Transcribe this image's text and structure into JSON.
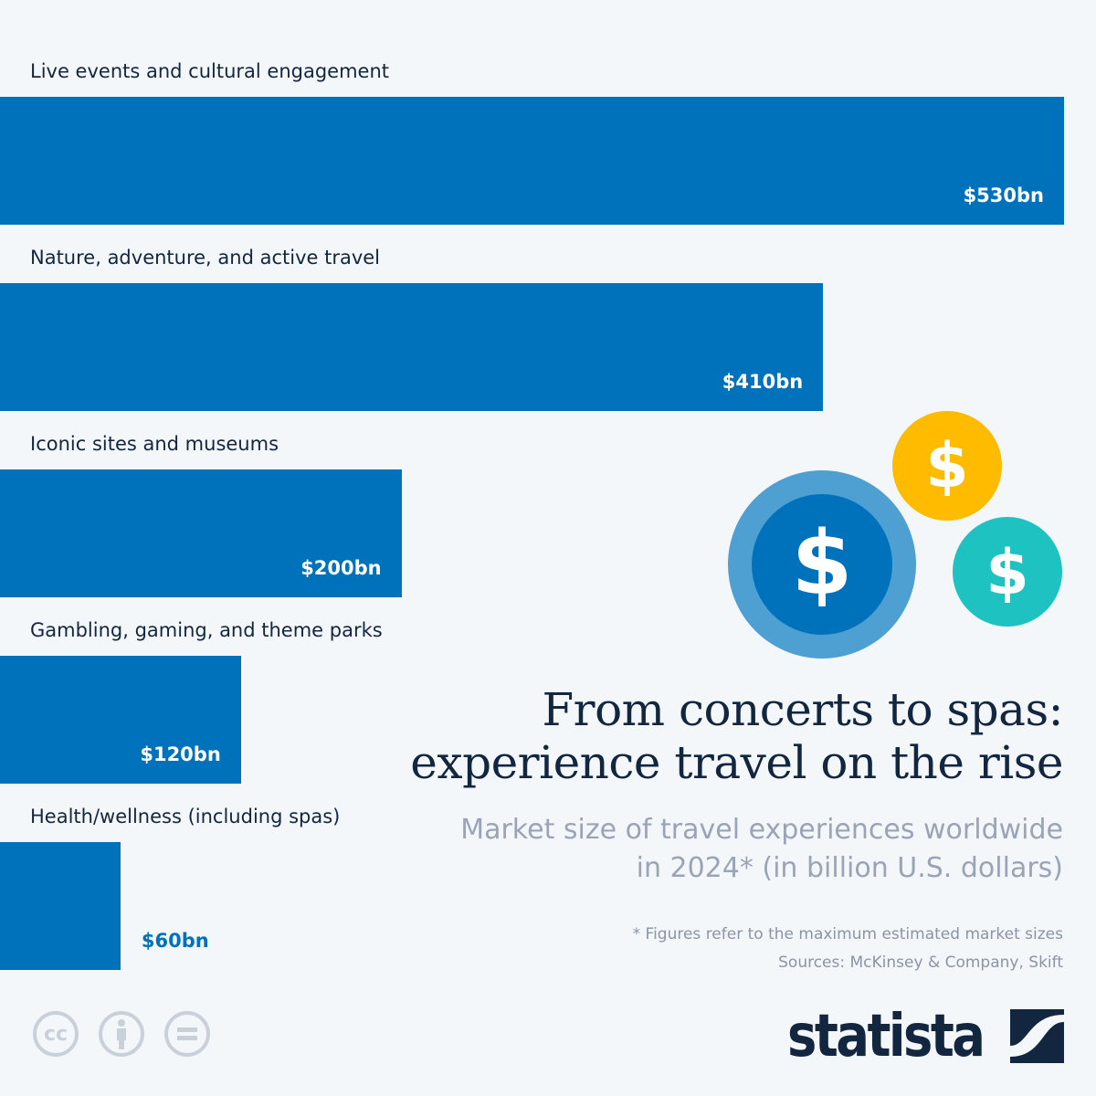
{
  "chart_data": {
    "type": "bar",
    "orientation": "horizontal",
    "title": "From concerts to spas: experience travel on the rise",
    "subtitle": "Market size of travel experiences worldwide in 2024* (in billion U.S. dollars)",
    "categories": [
      "Live events and cultural engagement",
      "Nature, adventure, and active travel",
      "Iconic sites and museums",
      "Gambling, gaming, and theme parks",
      "Health/wellness (including spas)"
    ],
    "values": [
      530,
      410,
      200,
      120,
      60
    ],
    "value_labels": [
      "$530bn",
      "$410bn",
      "$200bn",
      "$120bn",
      "$60bn"
    ],
    "xlim": [
      0,
      530
    ],
    "grid": false,
    "bar_color": "#0072bc",
    "text_color": "#13263f"
  },
  "title_lines": [
    "From concerts to spas:",
    "experience travel on the rise"
  ],
  "subtitle_lines": [
    "Market size of travel experiences worldwide",
    "in 2024* (in billion U.S. dollars)"
  ],
  "footnote": "* Figures refer to the maximum estimated market sizes",
  "sources": "Sources: McKinsey & Company, Skift",
  "logo": "statista",
  "license_icons": [
    "cc-icon",
    "attribution-icon",
    "no-derivatives-icon"
  ],
  "coin_colors": [
    "#0072bc",
    "#4fa0d2",
    "#ffbb00",
    "#1ec2c0"
  ]
}
